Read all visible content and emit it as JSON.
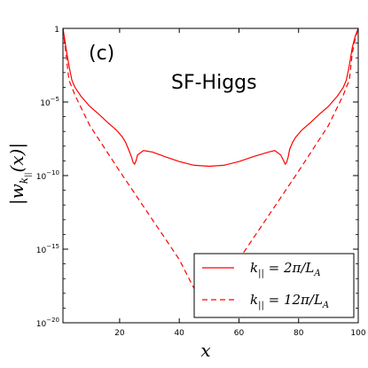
{
  "chart_data": {
    "type": "line",
    "panel_label": "(c)",
    "annotation": "SF-Higgs",
    "xlabel": "x",
    "ylabel": "|w_{k∥}(x)|",
    "ylabel_parts": {
      "main": "|w",
      "sub": "k",
      "subsub": "||",
      "rest": "(x)|"
    },
    "xlim": [
      1,
      100
    ],
    "ylim": [
      1e-20,
      1
    ],
    "y_scale": "log",
    "x_ticks": [
      {
        "value": 20,
        "label": "20"
      },
      {
        "value": 40,
        "label": "40"
      },
      {
        "value": 60,
        "label": "60"
      },
      {
        "value": 80,
        "label": "80"
      },
      {
        "value": 100,
        "label": "100"
      }
    ],
    "y_ticks": [
      {
        "value": 1,
        "base": "1",
        "exp": ""
      },
      {
        "value": 1e-05,
        "base": "10",
        "exp": "−5"
      },
      {
        "value": 1e-10,
        "base": "10",
        "exp": "−10"
      },
      {
        "value": 1e-15,
        "base": "10",
        "exp": "−15"
      },
      {
        "value": 1e-20,
        "base": "10",
        "exp": "−20"
      }
    ],
    "legend_position": "lower-right",
    "series": [
      {
        "name": "k|| = 2π/L_A",
        "label_parts": {
          "pre": "k",
          "sub": "||",
          "post": " = 2π/L",
          "sub2": "A"
        },
        "style": "solid",
        "color": "#ff0000",
        "x": [
          1,
          2,
          3,
          4,
          5,
          7,
          10,
          13,
          16,
          19,
          21,
          22,
          23,
          24,
          24.5,
          25,
          25.5,
          26,
          28,
          31,
          35,
          40,
          45,
          50,
          55,
          60,
          65,
          70,
          72,
          74,
          75,
          75.5,
          76,
          76.5,
          77,
          78,
          79,
          81,
          84,
          87,
          90,
          93,
          95,
          96,
          97,
          98,
          99,
          100
        ],
        "y": [
          1,
          0.05,
          0.003,
          0.0003,
          0.0001,
          2.5e-05,
          5e-06,
          1.5e-06,
          4e-07,
          1.2e-07,
          4e-08,
          1.8e-08,
          6e-09,
          1.8e-09,
          8e-10,
          6e-10,
          1e-09,
          2.5e-09,
          5e-09,
          4e-09,
          2e-09,
          9e-10,
          5e-10,
          4.3e-10,
          5e-10,
          9e-10,
          2e-09,
          4e-09,
          5e-09,
          2.5e-09,
          1e-09,
          6e-10,
          8e-10,
          1.8e-09,
          6e-09,
          1.8e-08,
          4e-08,
          1.2e-07,
          4e-07,
          1.5e-06,
          5e-06,
          2.5e-05,
          0.0001,
          0.0003,
          0.003,
          0.05,
          0.3,
          1
        ]
      },
      {
        "name": "k|| = 12π/L_A",
        "label_parts": {
          "pre": "k",
          "sub": "||",
          "post": " = 12π/L",
          "sub2": "A"
        },
        "style": "dashed",
        "color": "#ff0000",
        "x": [
          1,
          2,
          3,
          4,
          5,
          10,
          20,
          30,
          40,
          44,
          50,
          56,
          60,
          70,
          80,
          90,
          95,
          96,
          97,
          98,
          99,
          100
        ],
        "y": [
          1,
          0.02,
          0.0003,
          0.0001,
          3e-05,
          2.5e-07,
          2e-10,
          2e-13,
          2e-16,
          5e-18,
          3e-20,
          5e-18,
          2e-16,
          2e-13,
          2e-10,
          2.5e-07,
          3e-05,
          0.0001,
          0.0003,
          0.02,
          0.2,
          1
        ]
      }
    ]
  }
}
